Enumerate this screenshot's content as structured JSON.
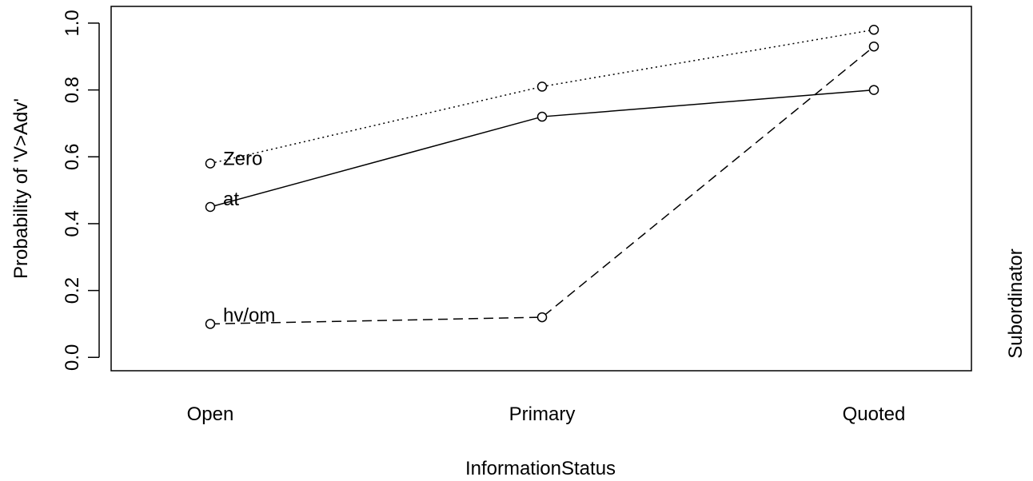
{
  "chart_data": {
    "type": "line",
    "xlabel": "InformationStatus",
    "ylabel": "Probability of 'V>Adv'",
    "side_label": "Subordinator",
    "categories": [
      "Open",
      "Primary",
      "Quoted"
    ],
    "ylim": [
      -0.04,
      1.05
    ],
    "yticks": [
      "0.0",
      "0.2",
      "0.4",
      "0.6",
      "0.8",
      "1.0"
    ],
    "grid": false,
    "legend": "inline-left",
    "series": [
      {
        "name": "Zero",
        "values": [
          0.58,
          0.81,
          0.98
        ],
        "linestyle": "dotted"
      },
      {
        "name": "at",
        "values": [
          0.45,
          0.72,
          0.8
        ],
        "linestyle": "solid"
      },
      {
        "name": "hv/om",
        "values": [
          0.1,
          0.12,
          0.93
        ],
        "linestyle": "dashed"
      }
    ]
  }
}
